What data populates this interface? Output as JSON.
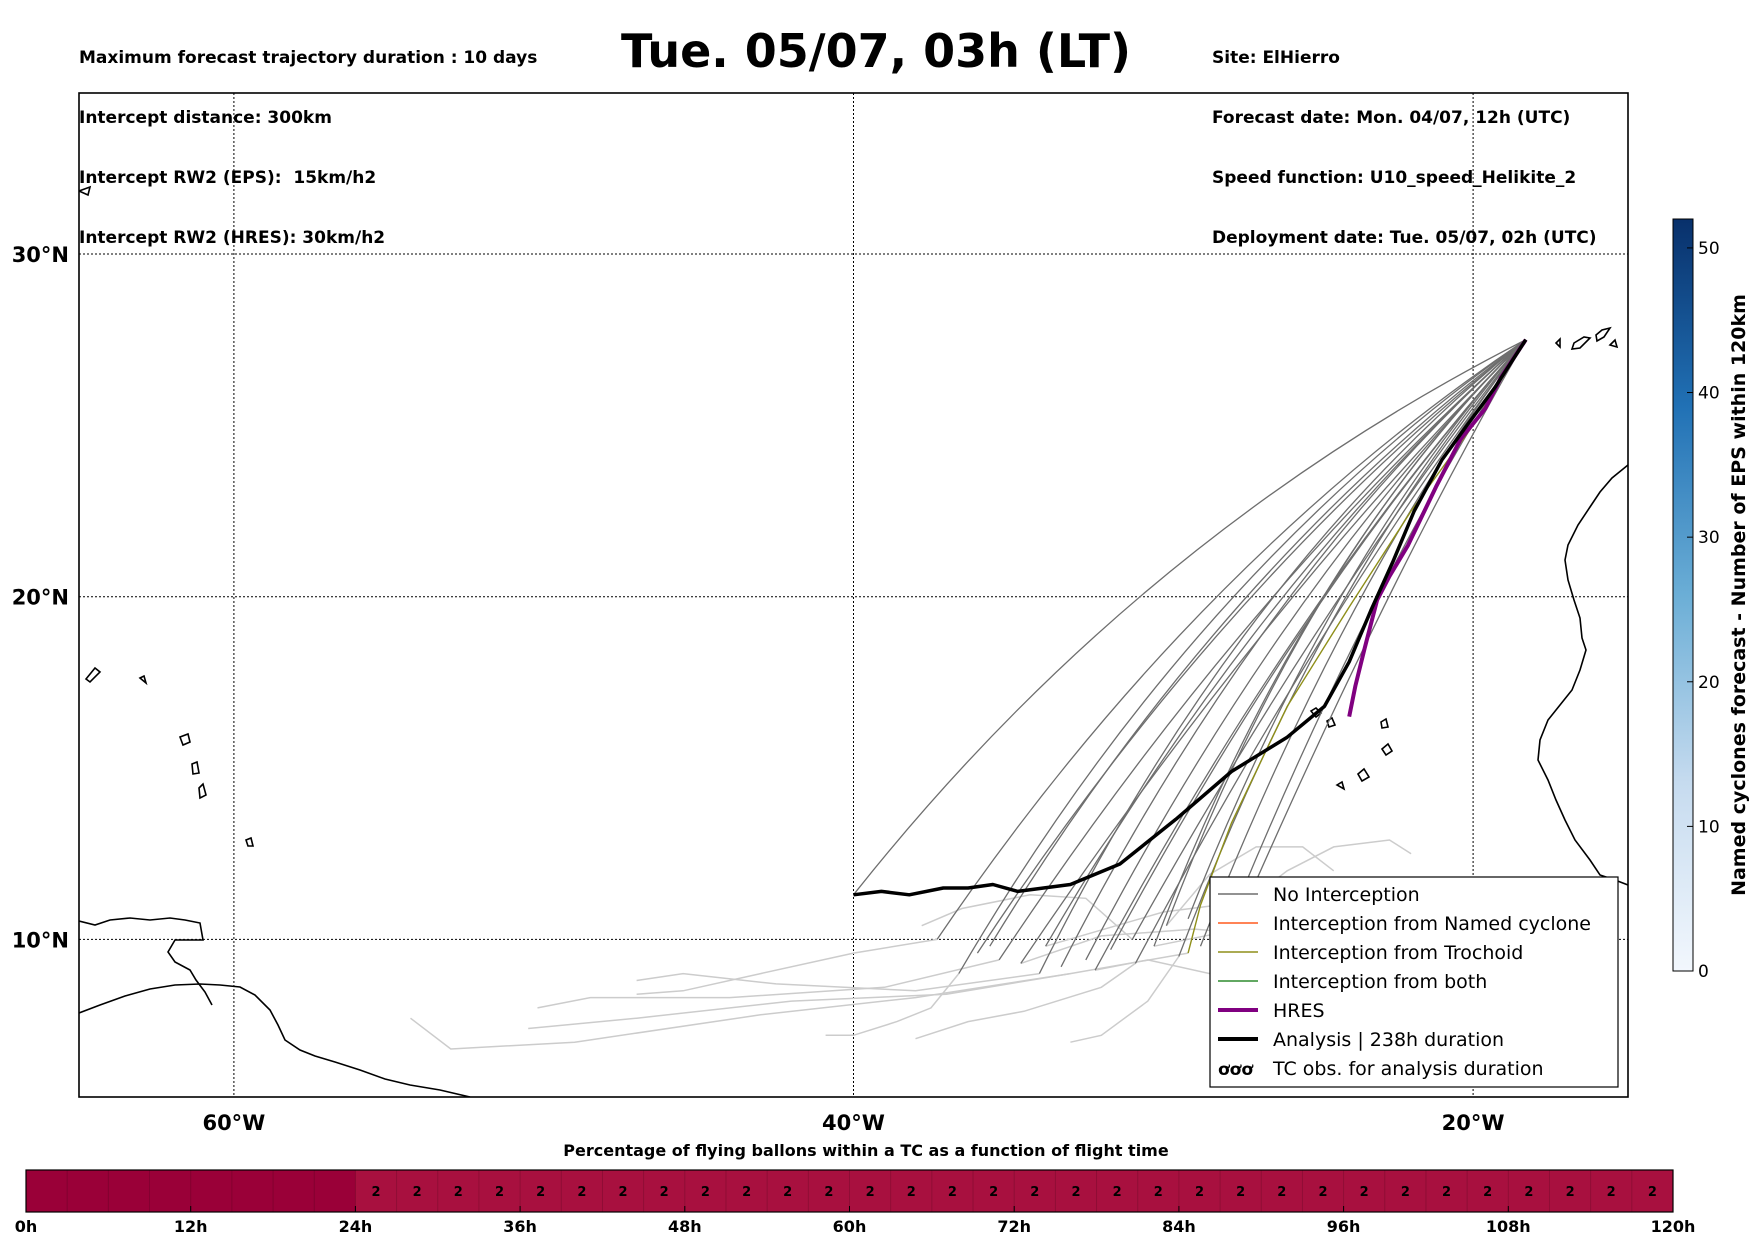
{
  "title": "Tue. 05/07, 03h (LT)",
  "info_left": [
    "Maximum forecast trajectory duration : 10 days",
    "Intercept distance: 300km",
    "Intercept RW2 (EPS):  15km/h2",
    "Intercept RW2 (HRES): 30km/h2"
  ],
  "info_right": [
    "Site: ElHierro",
    "Forecast date: Mon. 04/07, 12h (UTC)",
    "Speed function: U10_speed_Helikite_2",
    "Deployment date: Tue. 05/07, 02h (UTC)"
  ],
  "colors": {
    "no_interception": "#6e6e6e",
    "named_cyclone": "#ff5a1f",
    "trochoid": "#8f8f1a",
    "both": "#2e8b2e",
    "hres": "#800080",
    "analysis": "#000000",
    "faded_tracks": "#cccccc",
    "timeline_low": "#9a0038",
    "timeline_high": "#a8103f"
  },
  "chart_data": [
    {
      "type": "line",
      "title": "Tue. 05/07, 03h (LT)",
      "chart_kind": "map trajectories",
      "lat_ticks": [
        "10°N",
        "20°N",
        "30°N"
      ],
      "lon_ticks": [
        "60°W",
        "40°W",
        "20°W"
      ],
      "xlim": [
        -65,
        -15
      ],
      "ylim": [
        5.4,
        34.7
      ],
      "grid": true,
      "legend_position": "bottom-right",
      "legend": [
        {
          "label": "No Interception",
          "color": "#6e6e6e",
          "style": "thin"
        },
        {
          "label": "Interception from Named cyclone",
          "color": "#ff5a1f",
          "style": "thin"
        },
        {
          "label": "Interception from Trochoid",
          "color": "#8f8f1a",
          "style": "thin"
        },
        {
          "label": "Interception from both",
          "color": "#2e8b2e",
          "style": "thin"
        },
        {
          "label": "HRES",
          "color": "#800080",
          "style": "thick"
        },
        {
          "label": "Analysis | 238h duration",
          "color": "#000000",
          "style": "thick"
        },
        {
          "label": "TC obs. for analysis duration",
          "color": "#000000",
          "style": "symbol"
        }
      ],
      "launch_site": {
        "lon": -18.3,
        "lat": 27.5
      },
      "series": [
        {
          "name": "HRES",
          "color": "#800080",
          "points": [
            [
              -18.3,
              27.5
            ],
            [
              -19.1,
              26.4
            ],
            [
              -19.6,
              25.5
            ],
            [
              -20.4,
              24.6
            ],
            [
              -21.2,
              23.2
            ],
            [
              -22.1,
              21.5
            ],
            [
              -22.7,
              20.6
            ],
            [
              -23.1,
              19.9
            ],
            [
              -23.5,
              18.5
            ],
            [
              -23.8,
              17.4
            ],
            [
              -24.0,
              16.5
            ]
          ]
        },
        {
          "name": "Analysis | 238h duration",
          "color": "#000000",
          "points": [
            [
              -18.3,
              27.5
            ],
            [
              -19.3,
              26.1
            ],
            [
              -20.2,
              25.0
            ],
            [
              -21.0,
              24.0
            ],
            [
              -21.9,
              22.5
            ],
            [
              -22.6,
              21.0
            ],
            [
              -23.3,
              19.6
            ],
            [
              -24.0,
              18.1
            ],
            [
              -24.8,
              16.8
            ],
            [
              -26.0,
              15.9
            ],
            [
              -27.8,
              14.9
            ],
            [
              -29.6,
              13.5
            ],
            [
              -31.4,
              12.2
            ],
            [
              -33.0,
              11.6
            ],
            [
              -34.7,
              11.4
            ],
            [
              -35.5,
              11.6
            ],
            [
              -36.3,
              11.5
            ],
            [
              -37.1,
              11.5
            ],
            [
              -38.2,
              11.3
            ],
            [
              -39.1,
              11.4
            ],
            [
              -40.0,
              11.3
            ]
          ]
        }
      ],
      "interception_tracks": [
        {
          "name": "Interception from Trochoid",
          "points": [
            [
              -18.3,
              27.5
            ],
            [
              -20.0,
              25.0
            ],
            [
              -22.0,
              22.5
            ],
            [
              -24.0,
              19.7
            ],
            [
              -26.0,
              16.8
            ],
            [
              -27.8,
              13.4
            ],
            [
              -28.8,
              11.0
            ],
            [
              -29.2,
              9.6
            ]
          ]
        }
      ],
      "no_interception_endpoints": [
        [
          -40.0,
          11.3
        ],
        [
          -37.3,
          10.0
        ],
        [
          -36.0,
          9.6
        ],
        [
          -35.3,
          9.4
        ],
        [
          -34.6,
          9.3
        ],
        [
          -34.0,
          9.0
        ],
        [
          -33.3,
          9.2
        ],
        [
          -32.5,
          9.4
        ],
        [
          -31.7,
          9.7
        ],
        [
          -31.0,
          10.0
        ],
        [
          -30.3,
          9.8
        ],
        [
          -29.5,
          9.5
        ],
        [
          -28.8,
          9.8
        ],
        [
          -28.0,
          10.2
        ],
        [
          -27.3,
          11.1
        ],
        [
          -36.6,
          9.0
        ],
        [
          -35.6,
          9.8
        ],
        [
          -33.8,
          9.8
        ],
        [
          -32.2,
          9.1
        ],
        [
          -30.9,
          9.3
        ],
        [
          -29.9,
          10.4
        ],
        [
          -29.2,
          10.6
        ]
      ],
      "faded_tracks": [
        [
          [
            -29.2,
            9.6
          ],
          [
            -33.0,
            9.0
          ],
          [
            -37.0,
            8.4
          ],
          [
            -42.0,
            8.2
          ],
          [
            -47.0,
            7.7
          ],
          [
            -50.5,
            7.4
          ]
        ],
        [
          [
            -33.0,
            9.0
          ],
          [
            -38.0,
            8.3
          ],
          [
            -43.0,
            7.8
          ],
          [
            -49.0,
            7.0
          ],
          [
            -53.0,
            6.8
          ],
          [
            -54.3,
            7.7
          ]
        ],
        [
          [
            -35.3,
            9.4
          ],
          [
            -39.0,
            8.6
          ],
          [
            -44.0,
            8.3
          ],
          [
            -48.5,
            8.3
          ],
          [
            -50.2,
            8.0
          ]
        ],
        [
          [
            -34.0,
            9.0
          ],
          [
            -38.0,
            8.5
          ],
          [
            -42.5,
            8.7
          ],
          [
            -45.5,
            9.0
          ],
          [
            -47.0,
            8.8
          ]
        ],
        [
          [
            -31.0,
            10.0
          ],
          [
            -32.5,
            11.2
          ],
          [
            -34.3,
            11.3
          ],
          [
            -36.5,
            10.9
          ],
          [
            -37.8,
            10.4
          ]
        ],
        [
          [
            -30.9,
            9.3
          ],
          [
            -32.0,
            8.6
          ],
          [
            -34.5,
            7.9
          ],
          [
            -36.3,
            7.6
          ],
          [
            -38.0,
            7.1
          ]
        ],
        [
          [
            -29.5,
            9.5
          ],
          [
            -30.5,
            8.2
          ],
          [
            -32.0,
            7.2
          ],
          [
            -33.0,
            7.0
          ]
        ],
        [
          [
            -36.6,
            9.0
          ],
          [
            -37.5,
            8.0
          ],
          [
            -38.6,
            7.6
          ],
          [
            -40.0,
            7.2
          ],
          [
            -40.9,
            7.2
          ]
        ],
        [
          [
            -27.3,
            11.1
          ],
          [
            -26.0,
            12.0
          ],
          [
            -24.5,
            12.7
          ],
          [
            -22.7,
            12.9
          ],
          [
            -22.0,
            12.5
          ]
        ],
        [
          [
            -28.0,
            10.2
          ],
          [
            -26.5,
            11.0
          ],
          [
            -25.0,
            11.6
          ],
          [
            -23.6,
            11.2
          ],
          [
            -22.0,
            11.0
          ]
        ],
        [
          [
            -27.3,
            11.1
          ],
          [
            -25.3,
            10.9
          ],
          [
            -23.5,
            10.5
          ],
          [
            -21.7,
            10.9
          ],
          [
            -20.0,
            10.8
          ],
          [
            -17.8,
            11.3
          ]
        ],
        [
          [
            -30.3,
            9.8
          ],
          [
            -27.0,
            10.4
          ],
          [
            -24.0,
            9.8
          ],
          [
            -21.5,
            10.5
          ],
          [
            -19.5,
            10.2
          ]
        ],
        [
          [
            -29.9,
            10.4
          ],
          [
            -28.5,
            11.9
          ],
          [
            -27.0,
            12.7
          ],
          [
            -25.5,
            12.7
          ],
          [
            -24.5,
            12.0
          ]
        ],
        [
          [
            -32.2,
            9.1
          ],
          [
            -30.5,
            9.4
          ],
          [
            -28.5,
            9.0
          ],
          [
            -26.5,
            9.2
          ],
          [
            -24.0,
            9.3
          ]
        ],
        [
          [
            -34.6,
            9.3
          ],
          [
            -32.0,
            10.1
          ],
          [
            -29.0,
            10.3
          ],
          [
            -26.3,
            10.1
          ]
        ],
        [
          [
            -33.8,
            9.8
          ],
          [
            -30.0,
            10.8
          ],
          [
            -26.5,
            11.2
          ],
          [
            -24.5,
            11.0
          ]
        ],
        [
          [
            -37.3,
            10.0
          ],
          [
            -40.0,
            9.6
          ],
          [
            -43.0,
            9.0
          ],
          [
            -45.5,
            8.5
          ],
          [
            -47.0,
            8.4
          ]
        ]
      ]
    },
    {
      "type": "heatmap",
      "title": "Named cyclones forecast - Number of EPS within 120km",
      "ylabel": "Named cyclones forecast - Number of EPS within 120km",
      "ticks": [
        0,
        10,
        20,
        30,
        40,
        50
      ],
      "ylim": [
        0,
        52
      ],
      "color_low": "#e6eff9",
      "color_high": "#08306b"
    },
    {
      "type": "bar",
      "title": "Percentage of flying ballons within a TC as a function of flight time",
      "xlabel": "",
      "tick_labels": [
        "0h",
        "12h",
        "24h",
        "36h",
        "48h",
        "60h",
        "72h",
        "84h",
        "96h",
        "108h",
        "120h"
      ],
      "xlim": [
        0,
        120
      ],
      "hours_per_cell": 3,
      "values": [
        0,
        0,
        0,
        0,
        0,
        0,
        0,
        0,
        2,
        2,
        2,
        2,
        2,
        2,
        2,
        2,
        2,
        2,
        2,
        2,
        2,
        2,
        2,
        2,
        2,
        2,
        2,
        2,
        2,
        2,
        2,
        2,
        2,
        2,
        2,
        2,
        2,
        2,
        2,
        2
      ]
    }
  ]
}
